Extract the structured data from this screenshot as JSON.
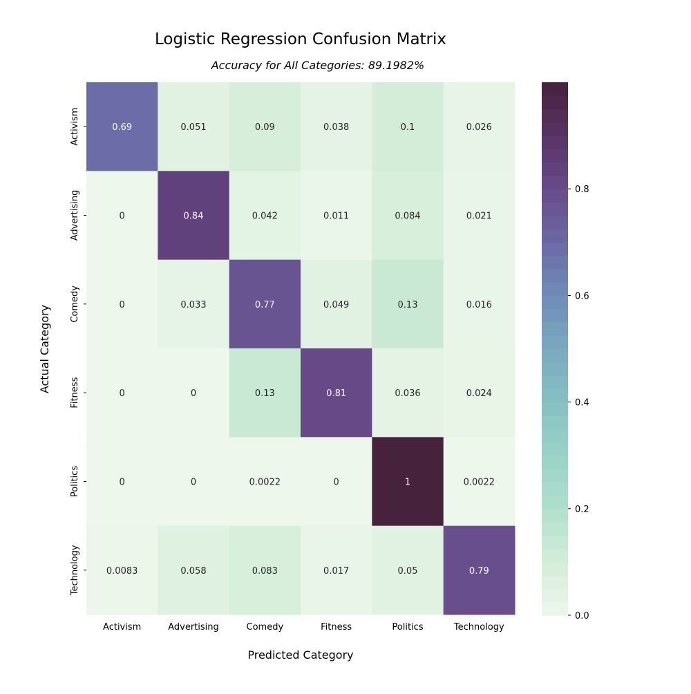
{
  "chart_data": {
    "type": "heatmap",
    "title": "Logistic Regression Confusion Matrix",
    "subtitle": "Accuracy for All Categories: 89.1982%",
    "xlabel": "Predicted Category",
    "ylabel": "Actual Category",
    "x_categories": [
      "Activism",
      "Advertising",
      "Comedy",
      "Fitness",
      "Politics",
      "Technology"
    ],
    "y_categories": [
      "Activism",
      "Advertising",
      "Comedy",
      "Fitness",
      "Politics",
      "Technology"
    ],
    "values": [
      [
        0.69,
        0.051,
        0.09,
        0.038,
        0.1,
        0.026
      ],
      [
        0,
        0.84,
        0.042,
        0.011,
        0.084,
        0.021
      ],
      [
        0,
        0.033,
        0.77,
        0.049,
        0.13,
        0.016
      ],
      [
        0,
        0,
        0.13,
        0.81,
        0.036,
        0.024
      ],
      [
        0,
        0,
        0.0022,
        0,
        1,
        0.0022
      ],
      [
        0.0083,
        0.058,
        0.083,
        0.017,
        0.05,
        0.79
      ]
    ],
    "colorbar": {
      "range": [
        0,
        1
      ],
      "ticks": [
        0.0,
        0.2,
        0.4,
        0.6,
        0.8
      ],
      "tick_labels": [
        "0.0",
        "0.2",
        "0.4",
        "0.6",
        "0.8"
      ],
      "colormap_stops": [
        {
          "v": 0.0,
          "color": "#eef7ec"
        },
        {
          "v": 0.1,
          "color": "#d4edd9"
        },
        {
          "v": 0.2,
          "color": "#b0e0cd"
        },
        {
          "v": 0.3,
          "color": "#9ad2c7"
        },
        {
          "v": 0.4,
          "color": "#88c0c3"
        },
        {
          "v": 0.5,
          "color": "#7aa9c0"
        },
        {
          "v": 0.6,
          "color": "#6f8cb8"
        },
        {
          "v": 0.7,
          "color": "#6c6aa6"
        },
        {
          "v": 0.8,
          "color": "#674b8a"
        },
        {
          "v": 0.9,
          "color": "#583365"
        },
        {
          "v": 1.0,
          "color": "#47223d"
        }
      ]
    }
  }
}
